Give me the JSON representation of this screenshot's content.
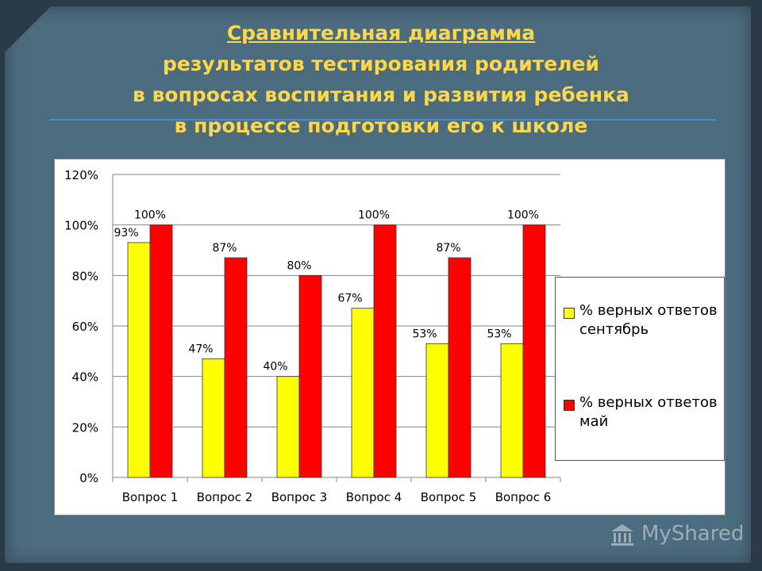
{
  "slide": {
    "title_line1": "Сравнительная диаграмма",
    "title_line2": "результатов тестирования родителей",
    "title_line3": "в вопросах воспитания и развития ребенка",
    "title_line4": "в процессе подготовки его  к школе",
    "watermark": "MyShared",
    "colors": {
      "background": "#4b6b7e",
      "title": "#ffd84a",
      "rule": "#4b8dd0"
    }
  },
  "chart_data": {
    "type": "bar",
    "categories": [
      "Вопрос 1",
      "Вопрос 2",
      "Вопрос 3",
      "Вопрос 4",
      "Вопрос 5",
      "Вопрос 6"
    ],
    "series": [
      {
        "name": "% верных ответов сентябрь",
        "values": [
          93,
          47,
          40,
          67,
          53,
          53
        ],
        "labels": [
          "93%",
          "47%",
          "40%",
          "67%",
          "53%",
          "53%"
        ],
        "color": "#ffff00"
      },
      {
        "name": "% верных ответов май",
        "values": [
          100,
          87,
          80,
          100,
          87,
          100
        ],
        "labels": [
          "100%",
          "87%",
          "80%",
          "100%",
          "87%",
          "100%"
        ],
        "color": "#ff0000"
      }
    ],
    "ylim": [
      0,
      120
    ],
    "yticks": [
      "0%",
      "20%",
      "40%",
      "60%",
      "80%",
      "100%",
      "120%"
    ],
    "grid": true,
    "legend_position": "right",
    "title": "",
    "xlabel": "",
    "ylabel": ""
  }
}
